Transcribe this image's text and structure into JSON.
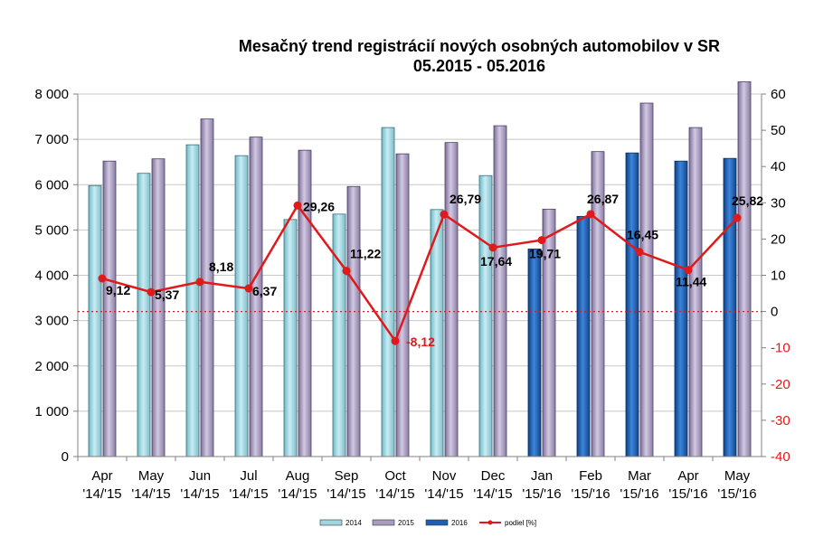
{
  "chart_data": {
    "type": "bar",
    "title": "Mesačný trend registrácií nových osobných automobilov v SR",
    "subtitle": "05.2015 - 05.2016",
    "categories": [
      {
        "month": "Apr",
        "period": "'14/'15"
      },
      {
        "month": "May",
        "period": "'14/'15"
      },
      {
        "month": "Jun",
        "period": "'14/'15"
      },
      {
        "month": "Jul",
        "period": "'14/'15"
      },
      {
        "month": "Aug",
        "period": "'14/'15"
      },
      {
        "month": "Sep",
        "period": "'14/'15"
      },
      {
        "month": "Oct",
        "period": "'14/'15"
      },
      {
        "month": "Nov",
        "period": "'14/'15"
      },
      {
        "month": "Dec",
        "period": "'14/'15"
      },
      {
        "month": "Jan",
        "period": "'15/'16"
      },
      {
        "month": "Feb",
        "period": "'15/'16"
      },
      {
        "month": "Mar",
        "period": "'15/'16"
      },
      {
        "month": "Apr",
        "period": "'15/'16"
      },
      {
        "month": "May",
        "period": "'15/'16"
      }
    ],
    "first_bar_year": [
      2014,
      2014,
      2014,
      2014,
      2014,
      2014,
      2014,
      2014,
      2014,
      2016,
      2016,
      2016,
      2016,
      2016
    ],
    "first_bar_values": [
      5980,
      6250,
      6880,
      6640,
      5230,
      5350,
      7260,
      5450,
      6200,
      4580,
      5300,
      6700,
      6520,
      6580
    ],
    "second_bar_values": [
      6520,
      6570,
      7450,
      7050,
      6760,
      5960,
      6680,
      6930,
      7300,
      5460,
      6730,
      7800,
      7260,
      8270
    ],
    "line_series": {
      "name": "podiel [%]",
      "values": [
        9.12,
        5.37,
        8.18,
        6.37,
        29.26,
        11.22,
        -8.12,
        26.79,
        17.64,
        19.71,
        26.87,
        16.45,
        11.44,
        25.82
      ],
      "labels": [
        "9,12",
        "5,37",
        "8,18",
        "6,37",
        "29,26",
        "11,22",
        "-8,12",
        "26,79",
        "17,64",
        "19,71",
        "26,87",
        "16,45",
        "11,44",
        "25,82"
      ]
    },
    "y_left": {
      "min": 0,
      "max": 8000,
      "step": 1000,
      "tick_labels": [
        "0",
        "1 000",
        "2 000",
        "3 000",
        "4 000",
        "5 000",
        "6 000",
        "7 000",
        "8 000"
      ]
    },
    "y_right": {
      "min": -40,
      "max": 60,
      "step": 10,
      "tick_labels": [
        "-40",
        "-30",
        "-20",
        "-10",
        "0",
        "10",
        "20",
        "30",
        "40",
        "50",
        "60"
      ]
    },
    "zero_reference_line": true,
    "grid": true,
    "legend": {
      "position": "bottom",
      "items": [
        {
          "label": "2014",
          "color": "#9fd6e0"
        },
        {
          "label": "2015",
          "color": "#a99cc0"
        },
        {
          "label": "2016",
          "color": "#1d5fb4"
        },
        {
          "label": "podiel [%]",
          "color": "#e0191b"
        }
      ]
    },
    "colors": {
      "bar_2014": "#9fd6e0",
      "bar_2015": "#a99cc0",
      "bar_2016": "#1d5fb4",
      "line": "#e0191b",
      "right_axis": "#e0191b",
      "grid": "#c8c8c8"
    }
  }
}
